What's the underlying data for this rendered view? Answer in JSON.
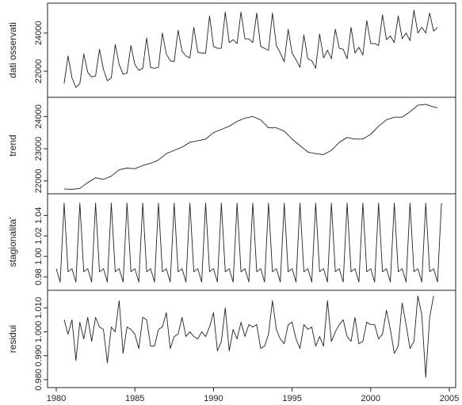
{
  "chart_data": {
    "type": "line",
    "layout": "stacked-panels",
    "x_range": [
      1980,
      2004.5
    ],
    "x_ticks": [
      1980,
      1985,
      1990,
      1995,
      2000,
      2005
    ],
    "panels": [
      {
        "name": "dati osservati",
        "ylabel": "dati osservati",
        "ylim": [
          20800,
          25400
        ],
        "y_ticks": [
          22000,
          24000
        ],
        "points": [
          [
            1980.5,
            21350
          ],
          [
            1980.75,
            22800
          ],
          [
            1981.0,
            21650
          ],
          [
            1981.25,
            21150
          ],
          [
            1981.5,
            21350
          ],
          [
            1981.75,
            22900
          ],
          [
            1982.0,
            21950
          ],
          [
            1982.25,
            21700
          ],
          [
            1982.5,
            21750
          ],
          [
            1982.75,
            23150
          ],
          [
            1983.0,
            22100
          ],
          [
            1983.25,
            21500
          ],
          [
            1983.5,
            21650
          ],
          [
            1983.75,
            23400
          ],
          [
            1984.0,
            22350
          ],
          [
            1984.25,
            21850
          ],
          [
            1984.5,
            21900
          ],
          [
            1984.75,
            23350
          ],
          [
            1985.0,
            22350
          ],
          [
            1985.25,
            22050
          ],
          [
            1985.5,
            22150
          ],
          [
            1985.75,
            23750
          ],
          [
            1986.0,
            22200
          ],
          [
            1986.25,
            22150
          ],
          [
            1986.5,
            22200
          ],
          [
            1986.75,
            24000
          ],
          [
            1987.0,
            22900
          ],
          [
            1987.25,
            22550
          ],
          [
            1987.5,
            22500
          ],
          [
            1987.75,
            24150
          ],
          [
            1988.0,
            23050
          ],
          [
            1988.25,
            22800
          ],
          [
            1988.5,
            22700
          ],
          [
            1988.75,
            24300
          ],
          [
            1989.0,
            23000
          ],
          [
            1989.25,
            22950
          ],
          [
            1989.5,
            22950
          ],
          [
            1989.75,
            24900
          ],
          [
            1990.0,
            23300
          ],
          [
            1990.25,
            23200
          ],
          [
            1990.5,
            23200
          ],
          [
            1990.75,
            25100
          ],
          [
            1991.0,
            23500
          ],
          [
            1991.25,
            23650
          ],
          [
            1991.5,
            23450
          ],
          [
            1991.75,
            25100
          ],
          [
            1992.0,
            23700
          ],
          [
            1992.25,
            23700
          ],
          [
            1992.5,
            23500
          ],
          [
            1992.75,
            25050
          ],
          [
            1993.0,
            23300
          ],
          [
            1993.25,
            23200
          ],
          [
            1993.5,
            23100
          ],
          [
            1993.75,
            25050
          ],
          [
            1994.0,
            23350
          ],
          [
            1994.25,
            22950
          ],
          [
            1994.5,
            22500
          ],
          [
            1994.75,
            24200
          ],
          [
            1995.0,
            22950
          ],
          [
            1995.25,
            22600
          ],
          [
            1995.5,
            22200
          ],
          [
            1995.75,
            23900
          ],
          [
            1996.0,
            22650
          ],
          [
            1996.25,
            22550
          ],
          [
            1996.5,
            22150
          ],
          [
            1996.75,
            23950
          ],
          [
            1997.0,
            22700
          ],
          [
            1997.25,
            23100
          ],
          [
            1997.5,
            22650
          ],
          [
            1997.75,
            24200
          ],
          [
            1998.0,
            23200
          ],
          [
            1998.25,
            23150
          ],
          [
            1998.5,
            22650
          ],
          [
            1998.75,
            24300
          ],
          [
            1999.0,
            22950
          ],
          [
            1999.25,
            23250
          ],
          [
            1999.5,
            22850
          ],
          [
            1999.75,
            24650
          ],
          [
            2000.0,
            23450
          ],
          [
            2000.25,
            23450
          ],
          [
            2000.5,
            23350
          ],
          [
            2000.75,
            24950
          ],
          [
            2001.0,
            23650
          ],
          [
            2001.25,
            23850
          ],
          [
            2001.5,
            23500
          ],
          [
            2001.75,
            24900
          ],
          [
            2002.0,
            23700
          ],
          [
            2002.25,
            24000
          ],
          [
            2002.5,
            23600
          ],
          [
            2002.75,
            25200
          ],
          [
            2003.0,
            24000
          ],
          [
            2003.25,
            24300
          ],
          [
            2003.5,
            24000
          ],
          [
            2003.75,
            25050
          ],
          [
            2004.0,
            24100
          ],
          [
            2004.25,
            24300
          ]
        ]
      },
      {
        "name": "trend",
        "ylabel": "trend",
        "ylim": [
          21700,
          24500
        ],
        "y_ticks": [
          22000,
          23000,
          24000
        ],
        "points": [
          [
            1980.5,
            21750
          ],
          [
            1981.0,
            21740
          ],
          [
            1981.5,
            21770
          ],
          [
            1982.0,
            21950
          ],
          [
            1982.5,
            22100
          ],
          [
            1983.0,
            22050
          ],
          [
            1983.5,
            22150
          ],
          [
            1984.0,
            22350
          ],
          [
            1984.5,
            22400
          ],
          [
            1985.0,
            22380
          ],
          [
            1985.5,
            22480
          ],
          [
            1986.0,
            22550
          ],
          [
            1986.5,
            22650
          ],
          [
            1987.0,
            22850
          ],
          [
            1987.5,
            22950
          ],
          [
            1988.0,
            23050
          ],
          [
            1988.5,
            23200
          ],
          [
            1989.0,
            23250
          ],
          [
            1989.5,
            23300
          ],
          [
            1990.0,
            23500
          ],
          [
            1990.5,
            23600
          ],
          [
            1991.0,
            23700
          ],
          [
            1991.5,
            23850
          ],
          [
            1992.0,
            23950
          ],
          [
            1992.5,
            24000
          ],
          [
            1993.0,
            23900
          ],
          [
            1993.5,
            23650
          ],
          [
            1994.0,
            23650
          ],
          [
            1994.5,
            23550
          ],
          [
            1995.0,
            23300
          ],
          [
            1995.5,
            23100
          ],
          [
            1996.0,
            22900
          ],
          [
            1996.5,
            22850
          ],
          [
            1997.0,
            22820
          ],
          [
            1997.5,
            22950
          ],
          [
            1998.0,
            23200
          ],
          [
            1998.5,
            23350
          ],
          [
            1999.0,
            23300
          ],
          [
            1999.5,
            23300
          ],
          [
            2000.0,
            23450
          ],
          [
            2000.5,
            23700
          ],
          [
            2001.0,
            23900
          ],
          [
            2001.5,
            23980
          ],
          [
            2002.0,
            23980
          ],
          [
            2002.5,
            24150
          ],
          [
            2003.0,
            24350
          ],
          [
            2003.5,
            24380
          ],
          [
            2004.0,
            24300
          ],
          [
            2004.25,
            24270
          ]
        ]
      },
      {
        "name": "stagionalita'",
        "ylabel": "stagionalita'",
        "ylim": [
          0.97,
          1.058
        ],
        "y_ticks": [
          0.98,
          1.0,
          1.02,
          1.04
        ],
        "season_pattern": [
          0.988,
          0.975,
          1.052,
          0.985
        ],
        "season_start": 1980.0,
        "season_end": 2004.5
      },
      {
        "name": "residui",
        "ylabel": "residui",
        "ylim": [
          0.978,
          1.016
        ],
        "y_ticks": [
          0.98,
          0.99,
          1.0,
          1.01
        ],
        "points": [
          [
            1980.5,
            1.005
          ],
          [
            1980.75,
            0.999
          ],
          [
            1981.0,
            1.005
          ],
          [
            1981.25,
            0.988
          ],
          [
            1981.5,
            1.004
          ],
          [
            1981.75,
            0.997
          ],
          [
            1982.0,
            1.006
          ],
          [
            1982.25,
            0.996
          ],
          [
            1982.5,
            1.006
          ],
          [
            1982.75,
            1.002
          ],
          [
            1983.0,
            1.001
          ],
          [
            1983.25,
            0.987
          ],
          [
            1983.5,
            1.002
          ],
          [
            1983.75,
            1.0
          ],
          [
            1984.0,
            1.013
          ],
          [
            1984.25,
            0.991
          ],
          [
            1984.5,
            1.002
          ],
          [
            1984.75,
            1.001
          ],
          [
            1985.0,
            0.999
          ],
          [
            1985.25,
            0.993
          ],
          [
            1985.5,
            1.006
          ],
          [
            1985.75,
            1.005
          ],
          [
            1986.0,
            0.994
          ],
          [
            1986.25,
            0.994
          ],
          [
            1986.5,
            1.001
          ],
          [
            1986.75,
            1.002
          ],
          [
            1987.0,
            1.008
          ],
          [
            1987.25,
            0.993
          ],
          [
            1987.5,
            0.998
          ],
          [
            1987.75,
            0.999
          ],
          [
            1988.0,
            1.006
          ],
          [
            1988.25,
            0.998
          ],
          [
            1988.5,
            1.0
          ],
          [
            1988.75,
            0.998
          ],
          [
            1989.0,
            0.997
          ],
          [
            1989.25,
            1.0
          ],
          [
            1989.5,
            0.998
          ],
          [
            1989.75,
            1.002
          ],
          [
            1990.0,
            1.008
          ],
          [
            1990.25,
            0.992
          ],
          [
            1990.5,
            0.996
          ],
          [
            1990.75,
            1.01
          ],
          [
            1991.0,
            0.992
          ],
          [
            1991.25,
            1.001
          ],
          [
            1991.5,
            0.997
          ],
          [
            1991.75,
            1.004
          ],
          [
            1992.0,
            0.998
          ],
          [
            1992.25,
            1.003
          ],
          [
            1992.5,
            1.002
          ],
          [
            1992.75,
            1.003
          ],
          [
            1993.0,
            0.993
          ],
          [
            1993.25,
            0.994
          ],
          [
            1993.5,
            0.999
          ],
          [
            1993.75,
            1.013
          ],
          [
            1994.0,
            1.001
          ],
          [
            1994.25,
            0.997
          ],
          [
            1994.5,
            0.995
          ],
          [
            1994.75,
            1.003
          ],
          [
            1995.0,
            1.004
          ],
          [
            1995.25,
            0.997
          ],
          [
            1995.5,
            0.993
          ],
          [
            1995.75,
            1.003
          ],
          [
            1996.0,
            1.001
          ],
          [
            1996.25,
            1.002
          ],
          [
            1996.5,
            0.994
          ],
          [
            1996.75,
            0.998
          ],
          [
            1997.0,
            0.994
          ],
          [
            1997.25,
            1.013
          ],
          [
            1997.5,
            0.996
          ],
          [
            1997.75,
            1.0
          ],
          [
            1998.0,
            1.003
          ],
          [
            1998.25,
            1.005
          ],
          [
            1998.5,
            0.998
          ],
          [
            1998.75,
            0.996
          ],
          [
            1999.0,
            1.006
          ],
          [
            1999.25,
            0.995
          ],
          [
            1999.5,
            0.996
          ],
          [
            1999.75,
            1.004
          ],
          [
            2000.0,
            1.003
          ],
          [
            2000.25,
            1.003
          ],
          [
            2000.5,
            0.997
          ],
          [
            2000.75,
            0.999
          ],
          [
            2001.0,
            1.009
          ],
          [
            2001.25,
            1.001
          ],
          [
            2001.5,
            0.991
          ],
          [
            2001.75,
            0.994
          ],
          [
            2002.0,
            1.012
          ],
          [
            2002.25,
            1.003
          ],
          [
            2002.5,
            0.993
          ],
          [
            2002.75,
            0.996
          ],
          [
            2003.0,
            1.015
          ],
          [
            2003.25,
            1.007
          ],
          [
            2003.5,
            0.981
          ],
          [
            2003.75,
            1.006
          ],
          [
            2004.0,
            1.015
          ]
        ]
      }
    ]
  }
}
